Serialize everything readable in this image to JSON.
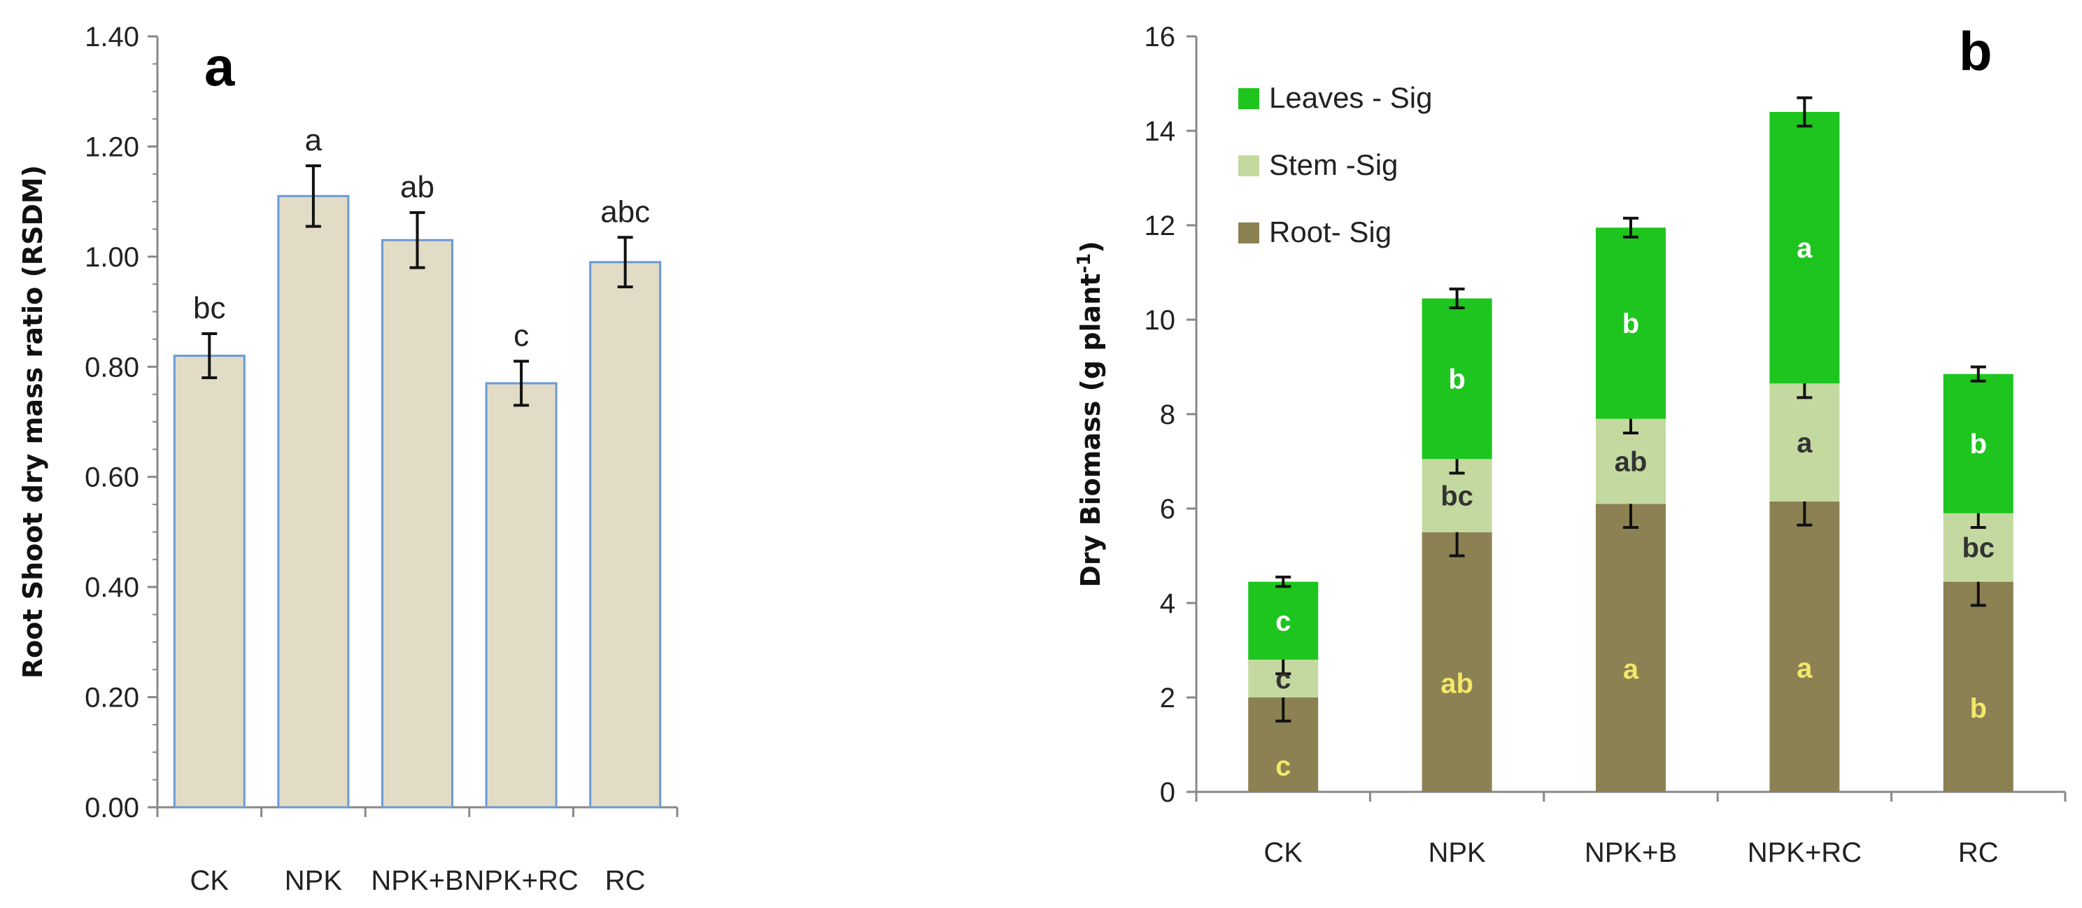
{
  "chart_data": [
    {
      "panel": "a",
      "type": "bar",
      "ylabel": "Root Shoot dry mass ratio (RSDM)",
      "categories": [
        "CK",
        "NPK",
        "NPK+B",
        "NPK+RC",
        "RC"
      ],
      "values": [
        0.82,
        1.11,
        1.03,
        0.77,
        0.99
      ],
      "errors": [
        0.04,
        0.055,
        0.05,
        0.04,
        0.045
      ],
      "significance": [
        "bc",
        "a",
        "ab",
        "c",
        "abc"
      ],
      "ylim": [
        0,
        1.4
      ],
      "yticks": [
        "0.00",
        "0.20",
        "0.40",
        "0.60",
        "0.80",
        "1.00",
        "1.20",
        "1.40"
      ],
      "bar_color": "#e2dcc6",
      "bar_border": "#6a9ad6"
    },
    {
      "panel": "b",
      "type": "bar",
      "stacked": true,
      "ylabel": "Dry Biomass (g plant",
      "ylabel_sup": "-1",
      "ylabel_end": ")",
      "categories": [
        "CK",
        "NPK",
        "NPK+B",
        "NPK+RC",
        "RC"
      ],
      "ylim": [
        0,
        16
      ],
      "yticks": [
        "0",
        "2",
        "4",
        "6",
        "8",
        "10",
        "12",
        "14",
        "16"
      ],
      "legend_position": "top-left",
      "series": [
        {
          "name": "Root- Sig",
          "color": "#8b8152",
          "label_color": "#f2e86a",
          "values": [
            2.0,
            5.5,
            6.1,
            6.15,
            4.45
          ],
          "errors": [
            0.5,
            0.5,
            0.5,
            0.5,
            0.5
          ],
          "significance": [
            "c",
            "ab",
            "a",
            "a",
            "b"
          ]
        },
        {
          "name": "Stem -Sig",
          "color": "#c3d99f",
          "label_color": "#333333",
          "values": [
            0.8,
            1.55,
            1.8,
            2.5,
            1.45
          ],
          "errors": [
            0.3,
            0.3,
            0.3,
            0.3,
            0.3
          ],
          "significance": [
            "c",
            "bc",
            "ab",
            "a",
            "bc"
          ]
        },
        {
          "name": "Leaves - Sig",
          "color": "#1ec51e",
          "label_color": "#ffffff",
          "values": [
            1.65,
            3.4,
            4.05,
            5.75,
            2.95
          ],
          "errors": [
            0.1,
            0.2,
            0.2,
            0.3,
            0.15
          ],
          "significance": [
            "c",
            "b",
            "b",
            "a",
            "b"
          ]
        }
      ],
      "legend_order": [
        "Leaves - Sig",
        "Stem -Sig",
        "Root- Sig"
      ]
    }
  ]
}
